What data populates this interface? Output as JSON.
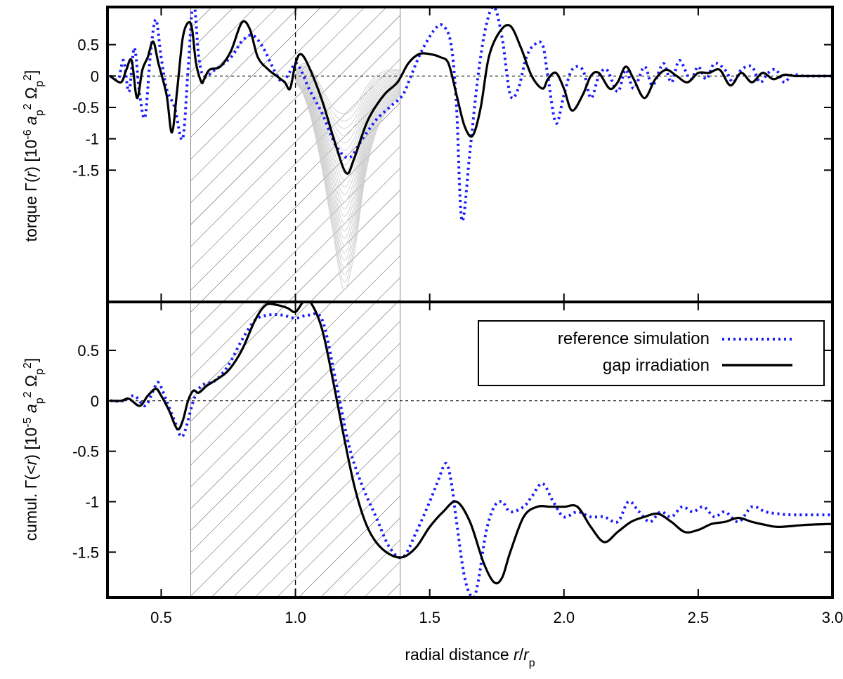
{
  "chart_data": [
    {
      "panel": "top",
      "type": "line",
      "ylabel_parts": [
        "torque Γ(",
        "r",
        ") [10",
        "-6",
        " a",
        "p",
        "2",
        " Ω",
        "p",
        "2",
        "]"
      ],
      "ylim": [
        -3.6,
        1.1
      ],
      "xlim": [
        0.3,
        3.0
      ],
      "yticks": [
        0.5,
        0,
        -0.5,
        -1,
        -1.5
      ],
      "ytick_labels": [
        "0.5",
        "0",
        "-0.5",
        "-1",
        "-1.5"
      ],
      "shaded_region": [
        0.61,
        1.39
      ],
      "vertical_line_x": 1.0,
      "zero_line": true,
      "series": [
        {
          "name": "reference simulation",
          "style": "dotted",
          "color": "#1a1aff",
          "x": [
            0.31,
            0.34,
            0.36,
            0.38,
            0.4,
            0.42,
            0.44,
            0.46,
            0.48,
            0.5,
            0.52,
            0.55,
            0.58,
            0.6,
            0.62,
            0.64,
            0.66,
            0.7,
            0.76,
            0.8,
            0.84,
            0.88,
            0.92,
            0.95,
            0.97,
            1.0,
            1.02,
            1.05,
            1.1,
            1.15,
            1.2,
            1.25,
            1.3,
            1.35,
            1.4,
            1.43,
            1.47,
            1.52,
            1.55,
            1.58,
            1.6,
            1.62,
            1.65,
            1.68,
            1.71,
            1.74,
            1.77,
            1.8,
            1.83,
            1.86,
            1.89,
            1.92,
            1.94,
            1.97,
            2.0,
            2.03,
            2.07,
            2.1,
            2.13,
            2.16,
            2.2,
            2.23,
            2.26,
            2.3,
            2.33,
            2.37,
            2.4,
            2.43,
            2.47,
            2.5,
            2.53,
            2.56,
            2.6,
            2.63,
            2.66,
            2.7,
            2.73,
            2.76,
            2.79,
            2.82,
            2.85,
            2.9,
            3.0
          ],
          "y": [
            0,
            -0.05,
            0.25,
            -0.25,
            0.45,
            -0.3,
            -0.65,
            0.35,
            0.9,
            0.3,
            -0.2,
            -0.5,
            -1.0,
            0.1,
            1.2,
            0.3,
            0,
            0.1,
            0.3,
            0.55,
            0.65,
            0.45,
            0.1,
            -0.1,
            0,
            0.2,
            0.1,
            -0.2,
            -0.6,
            -1.1,
            -1.3,
            -1.0,
            -0.7,
            -0.5,
            -0.3,
            0,
            0.4,
            0.75,
            0.8,
            0.5,
            -0.5,
            -2.3,
            -1.2,
            0,
            0.8,
            1.1,
            0.6,
            -0.3,
            -0.2,
            0.3,
            0.5,
            0.5,
            0,
            -0.75,
            -0.3,
            0.1,
            0.1,
            -0.35,
            0,
            0.1,
            -0.25,
            0.1,
            -0.2,
            0.15,
            -0.15,
            0.2,
            -0.1,
            0.25,
            -0.05,
            0.15,
            -0.05,
            0.2,
            0.1,
            -0.1,
            0.1,
            0.15,
            -0.1,
            0.05,
            0.1,
            -0.1,
            0.02,
            0,
            0
          ]
        },
        {
          "name": "gap irradiation",
          "style": "solid",
          "color": "#000000",
          "x": [
            0.31,
            0.35,
            0.37,
            0.39,
            0.41,
            0.43,
            0.45,
            0.47,
            0.49,
            0.52,
            0.54,
            0.56,
            0.58,
            0.6,
            0.615,
            0.63,
            0.65,
            0.66,
            0.68,
            0.72,
            0.76,
            0.8,
            0.83,
            0.86,
            0.9,
            0.93,
            0.96,
            0.98,
            1.0,
            1.02,
            1.05,
            1.1,
            1.15,
            1.19,
            1.22,
            1.27,
            1.33,
            1.38,
            1.42,
            1.46,
            1.5,
            1.54,
            1.57,
            1.6,
            1.63,
            1.66,
            1.69,
            1.72,
            1.76,
            1.8,
            1.84,
            1.88,
            1.92,
            1.94,
            1.97,
            2.0,
            2.03,
            2.07,
            2.1,
            2.13,
            2.17,
            2.2,
            2.23,
            2.26,
            2.3,
            2.34,
            2.38,
            2.42,
            2.46,
            2.5,
            2.54,
            2.58,
            2.62,
            2.66,
            2.7,
            2.74,
            2.78,
            2.82,
            2.86,
            2.9,
            3.0
          ],
          "y": [
            0,
            -0.1,
            0.1,
            0.25,
            -0.35,
            0.1,
            0.3,
            0.55,
            0.2,
            -0.3,
            -0.9,
            -0.2,
            0.6,
            0.85,
            0.75,
            0.2,
            -0.1,
            -0.05,
            0.1,
            0.15,
            0.4,
            0.85,
            0.75,
            0.3,
            0.1,
            0.0,
            -0.1,
            -0.2,
            0.2,
            0.35,
            0.15,
            -0.4,
            -1.1,
            -1.55,
            -1.3,
            -0.7,
            -0.3,
            -0.1,
            0.2,
            0.35,
            0.35,
            0.3,
            0.2,
            -0.3,
            -0.8,
            -0.95,
            -0.5,
            0.3,
            0.7,
            0.8,
            0.45,
            0.0,
            -0.2,
            -0.05,
            0.05,
            -0.2,
            -0.55,
            -0.3,
            0.0,
            0.05,
            -0.2,
            -0.1,
            0.15,
            -0.05,
            -0.35,
            -0.05,
            0.1,
            0.0,
            -0.1,
            0.05,
            0.05,
            0.1,
            -0.15,
            0.05,
            -0.1,
            0.05,
            -0.05,
            0.02,
            0,
            0,
            0
          ]
        }
      ],
      "gray_band": {
        "x": [
          1.0,
          1.03,
          1.06,
          1.1,
          1.14,
          1.18,
          1.22,
          1.26,
          1.3,
          1.35,
          1.39
        ],
        "upper": [
          0.1,
          0.2,
          0.1,
          -0.2,
          -0.5,
          -0.6,
          -0.5,
          -0.2,
          0.0,
          0.1,
          0.1
        ],
        "lower": [
          -0.1,
          -0.3,
          -0.7,
          -1.5,
          -2.5,
          -3.4,
          -2.8,
          -1.6,
          -0.9,
          -0.5,
          -0.3
        ]
      }
    },
    {
      "panel": "bottom",
      "type": "line",
      "xlabel_parts": [
        "radial distance ",
        "r",
        "/",
        "r",
        "p"
      ],
      "ylabel_parts": [
        "cumul. Γ(<",
        "r",
        ") [10",
        "-5",
        " a",
        "p",
        "2",
        " Ω",
        "p",
        "2",
        "]"
      ],
      "ylim": [
        -1.95,
        0.98
      ],
      "xlim": [
        0.3,
        3.0
      ],
      "yticks": [
        0.5,
        0,
        -0.5,
        -1,
        -1.5
      ],
      "ytick_labels": [
        "0.5",
        "0",
        "-0.5",
        "-1",
        "-1.5"
      ],
      "xticks": [
        0.5,
        1.0,
        1.5,
        2.0,
        2.5,
        3.0
      ],
      "xtick_labels": [
        "0.5",
        "1.0",
        "1.5",
        "2.0",
        "2.5",
        "3.0"
      ],
      "shaded_region": [
        0.61,
        1.39
      ],
      "vertical_line_x": 1.0,
      "zero_line": true,
      "series": [
        {
          "name": "reference simulation",
          "style": "dotted",
          "color": "#1a1aff",
          "x": [
            0.31,
            0.36,
            0.4,
            0.44,
            0.47,
            0.49,
            0.52,
            0.55,
            0.58,
            0.62,
            0.65,
            0.7,
            0.75,
            0.8,
            0.85,
            0.9,
            0.95,
            1.0,
            1.05,
            1.1,
            1.15,
            1.2,
            1.25,
            1.3,
            1.35,
            1.4,
            1.45,
            1.5,
            1.53,
            1.56,
            1.58,
            1.6,
            1.63,
            1.66,
            1.68,
            1.71,
            1.74,
            1.77,
            1.8,
            1.85,
            1.88,
            1.92,
            1.96,
            2.0,
            2.05,
            2.1,
            2.15,
            2.2,
            2.24,
            2.28,
            2.32,
            2.36,
            2.4,
            2.44,
            2.48,
            2.52,
            2.56,
            2.6,
            2.65,
            2.7,
            2.75,
            2.8,
            2.85,
            3.0
          ],
          "y": [
            0,
            0,
            0.05,
            -0.05,
            0.1,
            0.18,
            0.0,
            -0.2,
            -0.35,
            0.0,
            0.15,
            0.2,
            0.35,
            0.6,
            0.8,
            0.85,
            0.85,
            0.82,
            0.85,
            0.8,
            0.2,
            -0.45,
            -0.85,
            -1.15,
            -1.45,
            -1.55,
            -1.3,
            -1.0,
            -0.8,
            -0.62,
            -0.8,
            -1.2,
            -1.75,
            -1.95,
            -1.8,
            -1.3,
            -1.05,
            -1.0,
            -1.1,
            -1.05,
            -0.95,
            -0.82,
            -1.0,
            -1.15,
            -1.1,
            -1.15,
            -1.15,
            -1.2,
            -1.0,
            -1.1,
            -1.2,
            -1.1,
            -1.15,
            -1.05,
            -1.1,
            -1.05,
            -1.15,
            -1.1,
            -1.2,
            -1.05,
            -1.1,
            -1.12,
            -1.13,
            -1.13
          ]
        },
        {
          "name": "gap irradiation",
          "style": "solid",
          "color": "#000000",
          "x": [
            0.31,
            0.35,
            0.38,
            0.42,
            0.45,
            0.48,
            0.5,
            0.53,
            0.56,
            0.58,
            0.6,
            0.62,
            0.64,
            0.67,
            0.7,
            0.75,
            0.8,
            0.85,
            0.89,
            0.93,
            0.97,
            1.0,
            1.03,
            1.06,
            1.1,
            1.14,
            1.18,
            1.22,
            1.26,
            1.3,
            1.35,
            1.4,
            1.45,
            1.5,
            1.55,
            1.6,
            1.65,
            1.7,
            1.74,
            1.77,
            1.8,
            1.85,
            1.9,
            1.95,
            2.0,
            2.05,
            2.1,
            2.15,
            2.2,
            2.25,
            2.3,
            2.35,
            2.4,
            2.45,
            2.5,
            2.55,
            2.6,
            2.65,
            2.7,
            2.75,
            2.8,
            2.9,
            3.0
          ],
          "y": [
            0,
            0,
            0.02,
            -0.05,
            0.05,
            0.12,
            0.05,
            -0.1,
            -0.28,
            -0.2,
            0.0,
            0.1,
            0.08,
            0.15,
            0.2,
            0.3,
            0.5,
            0.8,
            0.95,
            0.95,
            0.92,
            0.88,
            0.98,
            0.96,
            0.7,
            0.2,
            -0.35,
            -0.85,
            -1.2,
            -1.4,
            -1.52,
            -1.55,
            -1.45,
            -1.25,
            -1.1,
            -1.0,
            -1.2,
            -1.6,
            -1.8,
            -1.75,
            -1.5,
            -1.15,
            -1.05,
            -1.05,
            -1.05,
            -1.05,
            -1.25,
            -1.4,
            -1.3,
            -1.2,
            -1.15,
            -1.12,
            -1.2,
            -1.3,
            -1.28,
            -1.22,
            -1.2,
            -1.16,
            -1.2,
            -1.23,
            -1.25,
            -1.23,
            -1.22
          ]
        }
      ],
      "legend": {
        "position": "top-right",
        "entries": [
          "reference simulation",
          "gap irradiation"
        ]
      }
    }
  ]
}
